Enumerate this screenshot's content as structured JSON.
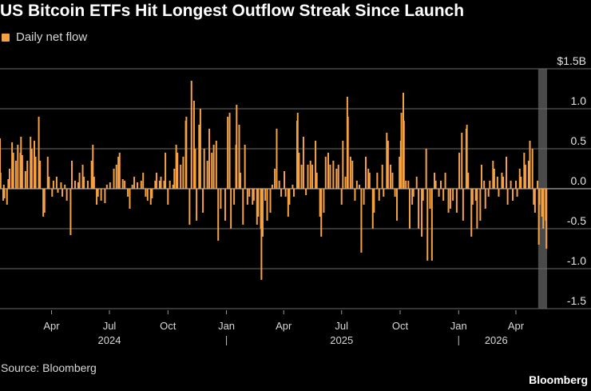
{
  "title": "US Bitcoin ETFs Hit Longest Outflow Streak Since Launch",
  "legend": {
    "label": "Daily net flow"
  },
  "source": "Source: Bloomberg",
  "brand": "Bloomberg",
  "colors": {
    "bar": "#f5a243",
    "background": "#000000",
    "grid": "#6a6a6a",
    "highlight": "#4a4a4a"
  },
  "chart_data": {
    "type": "bar",
    "series": [
      {
        "name": "Daily net flow"
      }
    ],
    "y_unit": "USD billions",
    "ylim": [
      -1.5,
      1.5
    ],
    "y_ticks": [
      {
        "value": 1.5,
        "label": "$1.5B"
      },
      {
        "value": 1.0,
        "label": "1.0"
      },
      {
        "value": 0.5,
        "label": "0.5"
      },
      {
        "value": 0.0,
        "label": "0.0"
      },
      {
        "value": -0.5,
        "label": "-0.5"
      },
      {
        "value": -1.0,
        "label": "-1.0"
      },
      {
        "value": -1.5,
        "label": "-1.5"
      }
    ],
    "x_range": [
      "2024-01-11",
      "2026-05-20"
    ],
    "x_month_ticks": [
      {
        "date": "2024-04-01",
        "label": "Apr"
      },
      {
        "date": "2024-07-01",
        "label": "Jul"
      },
      {
        "date": "2024-10-01",
        "label": "Oct"
      },
      {
        "date": "2025-01-01",
        "label": "Jan"
      },
      {
        "date": "2025-04-01",
        "label": "Apr"
      },
      {
        "date": "2025-07-01",
        "label": "Jul"
      },
      {
        "date": "2025-10-01",
        "label": "Oct"
      },
      {
        "date": "2026-01-01",
        "label": "Jan"
      },
      {
        "date": "2026-04-01",
        "label": "Apr"
      }
    ],
    "x_year_labels": [
      {
        "date": "2024-07-01",
        "label": "2024"
      },
      {
        "date": "2025-07-01",
        "label": "2025"
      },
      {
        "date": "2026-03-01",
        "label": "2026"
      }
    ],
    "x_year_separators": [
      "2025-01-01",
      "2026-01-01"
    ],
    "highlight_range": [
      "2026-05-06",
      "2026-05-20"
    ],
    "flows": [
      {
        "date": "2024-01-11",
        "value": 0.63
      },
      {
        "date": "2024-01-12",
        "value": 0.2
      },
      {
        "date": "2024-01-16",
        "value": -0.15
      },
      {
        "date": "2024-01-17",
        "value": 0.05
      },
      {
        "date": "2024-01-18",
        "value": -0.12
      },
      {
        "date": "2024-01-22",
        "value": -0.2
      },
      {
        "date": "2024-01-24",
        "value": 0.12
      },
      {
        "date": "2024-01-26",
        "value": 0.25
      },
      {
        "date": "2024-01-30",
        "value": 0.58
      },
      {
        "date": "2024-02-01",
        "value": 0.45
      },
      {
        "date": "2024-02-05",
        "value": 0.35
      },
      {
        "date": "2024-02-08",
        "value": 0.55
      },
      {
        "date": "2024-02-12",
        "value": 0.45
      },
      {
        "date": "2024-02-13",
        "value": 0.65
      },
      {
        "date": "2024-02-15",
        "value": 0.42
      },
      {
        "date": "2024-02-20",
        "value": 0.22
      },
      {
        "date": "2024-02-23",
        "value": 0.35
      },
      {
        "date": "2024-02-28",
        "value": 0.65
      },
      {
        "date": "2024-03-01",
        "value": 0.5
      },
      {
        "date": "2024-03-05",
        "value": 0.6
      },
      {
        "date": "2024-03-07",
        "value": 0.4
      },
      {
        "date": "2024-03-12",
        "value": 0.9
      },
      {
        "date": "2024-03-14",
        "value": 0.35
      },
      {
        "date": "2024-03-19",
        "value": -0.35
      },
      {
        "date": "2024-03-21",
        "value": -0.3
      },
      {
        "date": "2024-03-26",
        "value": 0.4
      },
      {
        "date": "2024-03-28",
        "value": 0.15
      },
      {
        "date": "2024-04-02",
        "value": -0.1
      },
      {
        "date": "2024-04-04",
        "value": 0.1
      },
      {
        "date": "2024-04-09",
        "value": 0.15
      },
      {
        "date": "2024-04-11",
        "value": -0.05
      },
      {
        "date": "2024-04-16",
        "value": 0.08
      },
      {
        "date": "2024-04-18",
        "value": -0.1
      },
      {
        "date": "2024-04-22",
        "value": 0.05
      },
      {
        "date": "2024-04-25",
        "value": -0.15
      },
      {
        "date": "2024-05-01",
        "value": -0.58
      },
      {
        "date": "2024-05-03",
        "value": 0.35
      },
      {
        "date": "2024-05-08",
        "value": 0.1
      },
      {
        "date": "2024-05-13",
        "value": 0.08
      },
      {
        "date": "2024-05-15",
        "value": 0.2
      },
      {
        "date": "2024-05-20",
        "value": 0.3
      },
      {
        "date": "2024-05-22",
        "value": 0.15
      },
      {
        "date": "2024-05-28",
        "value": 0.1
      },
      {
        "date": "2024-06-03",
        "value": 0.35
      },
      {
        "date": "2024-06-05",
        "value": 0.55
      },
      {
        "date": "2024-06-07",
        "value": 0.15
      },
      {
        "date": "2024-06-11",
        "value": -0.2
      },
      {
        "date": "2024-06-13",
        "value": -0.1
      },
      {
        "date": "2024-06-18",
        "value": -0.15
      },
      {
        "date": "2024-06-24",
        "value": -0.18
      },
      {
        "date": "2024-06-27",
        "value": 0.05
      },
      {
        "date": "2024-07-02",
        "value": 0.08
      },
      {
        "date": "2024-07-08",
        "value": 0.25
      },
      {
        "date": "2024-07-12",
        "value": 0.3
      },
      {
        "date": "2024-07-15",
        "value": 0.4
      },
      {
        "date": "2024-07-17",
        "value": 0.45
      },
      {
        "date": "2024-07-22",
        "value": 0.12
      },
      {
        "date": "2024-07-25",
        "value": 0.1
      },
      {
        "date": "2024-07-30",
        "value": -0.1
      },
      {
        "date": "2024-08-02",
        "value": -0.25
      },
      {
        "date": "2024-08-06",
        "value": 0.05
      },
      {
        "date": "2024-08-09",
        "value": 0.15
      },
      {
        "date": "2024-08-14",
        "value": 0.08
      },
      {
        "date": "2024-08-20",
        "value": 0.1
      },
      {
        "date": "2024-08-23",
        "value": 0.2
      },
      {
        "date": "2024-08-27",
        "value": -0.1
      },
      {
        "date": "2024-08-30",
        "value": -0.15
      },
      {
        "date": "2024-09-04",
        "value": -0.2
      },
      {
        "date": "2024-09-06",
        "value": -0.12
      },
      {
        "date": "2024-09-11",
        "value": 0.1
      },
      {
        "date": "2024-09-13",
        "value": 0.2
      },
      {
        "date": "2024-09-18",
        "value": 0.1
      },
      {
        "date": "2024-09-20",
        "value": 0.15
      },
      {
        "date": "2024-09-25",
        "value": 0.1
      },
      {
        "date": "2024-09-27",
        "value": 0.45
      },
      {
        "date": "2024-10-01",
        "value": -0.2
      },
      {
        "date": "2024-10-04",
        "value": 0.1
      },
      {
        "date": "2024-10-09",
        "value": 0.05
      },
      {
        "date": "2024-10-11",
        "value": 0.25
      },
      {
        "date": "2024-10-14",
        "value": 0.55
      },
      {
        "date": "2024-10-16",
        "value": 0.45
      },
      {
        "date": "2024-10-21",
        "value": 0.3
      },
      {
        "date": "2024-10-25",
        "value": 0.4
      },
      {
        "date": "2024-10-29",
        "value": 0.85
      },
      {
        "date": "2024-10-30",
        "value": 0.9
      },
      {
        "date": "2024-11-04",
        "value": -0.45
      },
      {
        "date": "2024-11-07",
        "value": 1.35
      },
      {
        "date": "2024-11-11",
        "value": 1.1
      },
      {
        "date": "2024-11-13",
        "value": 0.5
      },
      {
        "date": "2024-11-15",
        "value": -0.4
      },
      {
        "date": "2024-11-19",
        "value": 0.8
      },
      {
        "date": "2024-11-21",
        "value": 1.0
      },
      {
        "date": "2024-11-25",
        "value": -0.3
      },
      {
        "date": "2024-11-27",
        "value": 0.5
      },
      {
        "date": "2024-12-02",
        "value": 0.35
      },
      {
        "date": "2024-12-05",
        "value": 0.75
      },
      {
        "date": "2024-12-09",
        "value": 0.45
      },
      {
        "date": "2024-12-12",
        "value": 0.55
      },
      {
        "date": "2024-12-16",
        "value": 0.6
      },
      {
        "date": "2024-12-19",
        "value": -0.65
      },
      {
        "date": "2024-12-23",
        "value": -0.25
      },
      {
        "date": "2024-12-30",
        "value": -0.4
      },
      {
        "date": "2025-01-03",
        "value": 0.9
      },
      {
        "date": "2025-01-06",
        "value": 0.95
      },
      {
        "date": "2025-01-08",
        "value": -0.5
      },
      {
        "date": "2025-01-13",
        "value": -0.2
      },
      {
        "date": "2025-01-16",
        "value": 0.55
      },
      {
        "date": "2025-01-17",
        "value": 1.05
      },
      {
        "date": "2025-01-21",
        "value": 0.8
      },
      {
        "date": "2025-01-23",
        "value": 0.2
      },
      {
        "date": "2025-01-27",
        "value": -0.45
      },
      {
        "date": "2025-01-30",
        "value": 0.55
      },
      {
        "date": "2025-02-03",
        "value": -0.2
      },
      {
        "date": "2025-02-06",
        "value": -0.1
      },
      {
        "date": "2025-02-11",
        "value": -0.2
      },
      {
        "date": "2025-02-13",
        "value": -0.15
      },
      {
        "date": "2025-02-18",
        "value": -0.45
      },
      {
        "date": "2025-02-20",
        "value": -0.35
      },
      {
        "date": "2025-02-24",
        "value": -0.5
      },
      {
        "date": "2025-02-25",
        "value": -1.14
      },
      {
        "date": "2025-02-27",
        "value": -0.6
      },
      {
        "date": "2025-03-03",
        "value": -0.15
      },
      {
        "date": "2025-03-06",
        "value": -0.4
      },
      {
        "date": "2025-03-11",
        "value": -0.3
      },
      {
        "date": "2025-03-14",
        "value": 0.05
      },
      {
        "date": "2025-03-18",
        "value": 0.25
      },
      {
        "date": "2025-03-21",
        "value": 0.75
      },
      {
        "date": "2025-03-25",
        "value": 0.1
      },
      {
        "date": "2025-03-28",
        "value": -0.1
      },
      {
        "date": "2025-04-02",
        "value": 0.22
      },
      {
        "date": "2025-04-04",
        "value": -0.1
      },
      {
        "date": "2025-04-08",
        "value": -0.35
      },
      {
        "date": "2025-04-10",
        "value": -0.2
      },
      {
        "date": "2025-04-15",
        "value": 0.05
      },
      {
        "date": "2025-04-17",
        "value": -0.1
      },
      {
        "date": "2025-04-22",
        "value": 0.85
      },
      {
        "date": "2025-04-23",
        "value": 0.95
      },
      {
        "date": "2025-04-25",
        "value": 0.45
      },
      {
        "date": "2025-04-29",
        "value": 0.3
      },
      {
        "date": "2025-05-02",
        "value": 0.65
      },
      {
        "date": "2025-05-06",
        "value": -0.08
      },
      {
        "date": "2025-05-09",
        "value": 0.3
      },
      {
        "date": "2025-05-13",
        "value": 0.35
      },
      {
        "date": "2025-05-16",
        "value": 0.3
      },
      {
        "date": "2025-05-21",
        "value": 0.6
      },
      {
        "date": "2025-05-23",
        "value": 0.2
      },
      {
        "date": "2025-05-28",
        "value": -0.35
      },
      {
        "date": "2025-05-30",
        "value": -0.6
      },
      {
        "date": "2025-06-03",
        "value": -0.3
      },
      {
        "date": "2025-06-06",
        "value": 0.4
      },
      {
        "date": "2025-06-10",
        "value": 0.45
      },
      {
        "date": "2025-06-13",
        "value": 0.3
      },
      {
        "date": "2025-06-18",
        "value": 0.35
      },
      {
        "date": "2025-06-23",
        "value": 0.25
      },
      {
        "date": "2025-06-26",
        "value": 0.3
      },
      {
        "date": "2025-07-01",
        "value": -0.2
      },
      {
        "date": "2025-07-03",
        "value": 0.6
      },
      {
        "date": "2025-07-07",
        "value": 0.15
      },
      {
        "date": "2025-07-10",
        "value": 1.15
      },
      {
        "date": "2025-07-11",
        "value": 0.9
      },
      {
        "date": "2025-07-15",
        "value": 0.4
      },
      {
        "date": "2025-07-18",
        "value": 0.35
      },
      {
        "date": "2025-07-22",
        "value": -0.15
      },
      {
        "date": "2025-07-25",
        "value": 0.1
      },
      {
        "date": "2025-07-29",
        "value": 0.05
      },
      {
        "date": "2025-08-01",
        "value": -0.8
      },
      {
        "date": "2025-08-05",
        "value": -0.2
      },
      {
        "date": "2025-08-08",
        "value": 0.4
      },
      {
        "date": "2025-08-12",
        "value": 0.25
      },
      {
        "date": "2025-08-14",
        "value": 0.2
      },
      {
        "date": "2025-08-19",
        "value": -0.5
      },
      {
        "date": "2025-08-21",
        "value": -0.3
      },
      {
        "date": "2025-08-26",
        "value": 0.2
      },
      {
        "date": "2025-08-29",
        "value": -0.15
      },
      {
        "date": "2025-09-03",
        "value": 0.3
      },
      {
        "date": "2025-09-05",
        "value": -0.1
      },
      {
        "date": "2025-09-10",
        "value": 0.7
      },
      {
        "date": "2025-09-12",
        "value": 0.6
      },
      {
        "date": "2025-09-16",
        "value": 0.3
      },
      {
        "date": "2025-09-19",
        "value": 0.2
      },
      {
        "date": "2025-09-23",
        "value": -0.1
      },
      {
        "date": "2025-09-26",
        "value": -0.4
      },
      {
        "date": "2025-09-30",
        "value": 0.4
      },
      {
        "date": "2025-10-02",
        "value": 0.6
      },
      {
        "date": "2025-10-03",
        "value": 0.95
      },
      {
        "date": "2025-10-06",
        "value": 1.2
      },
      {
        "date": "2025-10-07",
        "value": 0.85
      },
      {
        "date": "2025-10-10",
        "value": 0.1
      },
      {
        "date": "2025-10-14",
        "value": 0.1
      },
      {
        "date": "2025-10-16",
        "value": -0.5
      },
      {
        "date": "2025-10-20",
        "value": -0.2
      },
      {
        "date": "2025-10-22",
        "value": -0.1
      },
      {
        "date": "2025-10-27",
        "value": 0.15
      },
      {
        "date": "2025-10-30",
        "value": -0.5
      },
      {
        "date": "2025-11-04",
        "value": -0.6
      },
      {
        "date": "2025-11-06",
        "value": -0.15
      },
      {
        "date": "2025-11-11",
        "value": 0.5
      },
      {
        "date": "2025-11-13",
        "value": -0.9
      },
      {
        "date": "2025-11-17",
        "value": -0.25
      },
      {
        "date": "2025-11-20",
        "value": -0.9
      },
      {
        "date": "2025-11-24",
        "value": 0.2
      },
      {
        "date": "2025-11-26",
        "value": 0.1
      },
      {
        "date": "2025-12-01",
        "value": -0.1
      },
      {
        "date": "2025-12-04",
        "value": 0.1
      },
      {
        "date": "2025-12-08",
        "value": -0.15
      },
      {
        "date": "2025-12-11",
        "value": 0.2
      },
      {
        "date": "2025-12-16",
        "value": -0.3
      },
      {
        "date": "2025-12-19",
        "value": -0.25
      },
      {
        "date": "2025-12-23",
        "value": -0.15
      },
      {
        "date": "2025-12-29",
        "value": -0.3
      },
      {
        "date": "2026-01-02",
        "value": 0.45
      },
      {
        "date": "2026-01-06",
        "value": 0.7
      },
      {
        "date": "2026-01-08",
        "value": -0.4
      },
      {
        "date": "2026-01-13",
        "value": 0.75
      },
      {
        "date": "2026-01-14",
        "value": 0.8
      },
      {
        "date": "2026-01-16",
        "value": 0.2
      },
      {
        "date": "2026-01-21",
        "value": -0.6
      },
      {
        "date": "2026-01-23",
        "value": -0.2
      },
      {
        "date": "2026-01-28",
        "value": -0.15
      },
      {
        "date": "2026-01-30",
        "value": -0.5
      },
      {
        "date": "2026-02-04",
        "value": -0.4
      },
      {
        "date": "2026-02-06",
        "value": 0.3
      },
      {
        "date": "2026-02-10",
        "value": 0.1
      },
      {
        "date": "2026-02-12",
        "value": -0.25
      },
      {
        "date": "2026-02-17",
        "value": -0.1
      },
      {
        "date": "2026-02-19",
        "value": 0.1
      },
      {
        "date": "2026-02-24",
        "value": 0.35
      },
      {
        "date": "2026-02-26",
        "value": 0.25
      },
      {
        "date": "2026-03-03",
        "value": 0.15
      },
      {
        "date": "2026-03-05",
        "value": -0.1
      },
      {
        "date": "2026-03-10",
        "value": 0.2
      },
      {
        "date": "2026-03-12",
        "value": 0.15
      },
      {
        "date": "2026-03-17",
        "value": 0.4
      },
      {
        "date": "2026-03-19",
        "value": -0.2
      },
      {
        "date": "2026-03-24",
        "value": 0.1
      },
      {
        "date": "2026-03-27",
        "value": -0.15
      },
      {
        "date": "2026-04-01",
        "value": 0.1
      },
      {
        "date": "2026-04-03",
        "value": -0.1
      },
      {
        "date": "2026-04-07",
        "value": 0.25
      },
      {
        "date": "2026-04-09",
        "value": 0.15
      },
      {
        "date": "2026-04-14",
        "value": 0.45
      },
      {
        "date": "2026-04-16",
        "value": 0.3
      },
      {
        "date": "2026-04-21",
        "value": 0.35
      },
      {
        "date": "2026-04-23",
        "value": 0.6
      },
      {
        "date": "2026-04-27",
        "value": 0.5
      },
      {
        "date": "2026-04-29",
        "value": -0.2
      },
      {
        "date": "2026-05-01",
        "value": -0.3
      },
      {
        "date": "2026-05-05",
        "value": 0.1
      },
      {
        "date": "2026-05-07",
        "value": -0.7
      },
      {
        "date": "2026-05-08",
        "value": -0.2
      },
      {
        "date": "2026-05-12",
        "value": -0.35
      },
      {
        "date": "2026-05-14",
        "value": -0.5
      },
      {
        "date": "2026-05-18",
        "value": -0.4
      },
      {
        "date": "2026-05-19",
        "value": -0.75
      }
    ]
  }
}
